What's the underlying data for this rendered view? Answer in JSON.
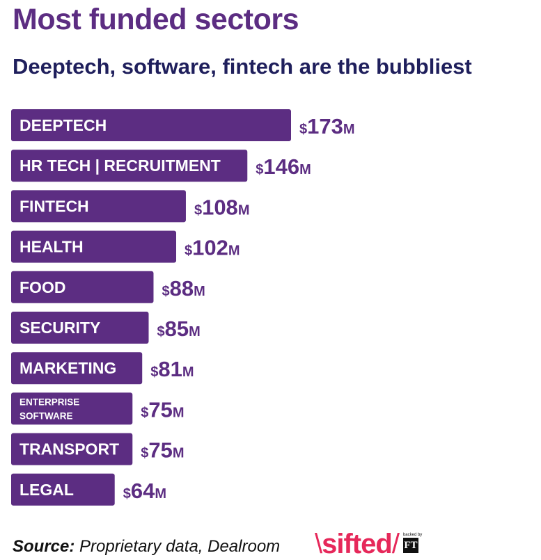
{
  "title": "Most funded sectors",
  "subtitle": "Deeptech, software, fintech are the bubbliest",
  "chart_data": {
    "type": "bar",
    "orientation": "horizontal",
    "categories": [
      "DEEPTECH",
      "HR TECH | RECRUITMENT",
      "FINTECH",
      "HEALTH",
      "FOOD",
      "SECURITY",
      "MARKETING",
      "ENTERPRISE SOFTWARE",
      "TRANSPORT",
      "LEGAL"
    ],
    "values": [
      173,
      146,
      108,
      102,
      88,
      85,
      81,
      75,
      75,
      64
    ],
    "value_prefix": "$",
    "value_suffix": "M",
    "title": "Most funded sectors",
    "subtitle": "Deeptech, software, fintech are the bubbliest",
    "bar_color": "#5c2d82"
  },
  "footer": {
    "source_label": "Source:",
    "source_text": "Proprietary data, Dealroom"
  },
  "brand": {
    "logo_text": "sifted",
    "backed_by": "backed by",
    "ft_mark": "FT",
    "logo_color": "#e6285a"
  },
  "colors": {
    "title": "#5c2d82",
    "subtitle": "#1f1f5c",
    "bar": "#5c2d82"
  }
}
